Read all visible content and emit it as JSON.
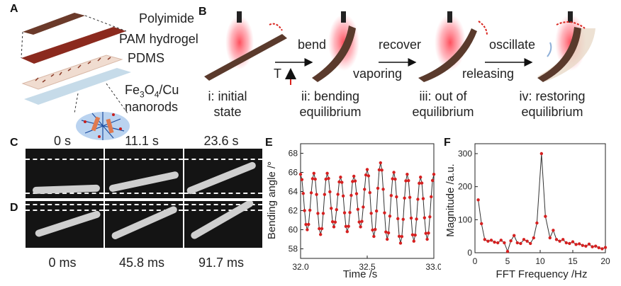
{
  "panels": {
    "a": "A",
    "b": "B",
    "c": "C",
    "d": "D",
    "e": "E",
    "f": "F"
  },
  "panel_a": {
    "layers": [
      "Polyimide",
      "PAM hydrogel",
      "PDMS"
    ],
    "nanorods_line1_pre": "Fe",
    "nanorods_sub1": "3",
    "nanorods_mid": "O",
    "nanorods_sub2": "4",
    "nanorods_post": "/Cu",
    "nanorods_line2": "nanorods"
  },
  "panel_b": {
    "arrow_labels": {
      "bend": "bend",
      "recover": "recover",
      "oscillate": "oscillate",
      "vaporing": "vaporing",
      "releasing": "releasing",
      "t": "T"
    },
    "states": [
      {
        "line1": "i: initial",
        "line2": "state"
      },
      {
        "line1": "ii: bending",
        "line2": "equilibrium"
      },
      {
        "line1": "iii: out of",
        "line2": "equilibrium"
      },
      {
        "line1": "iv: restoring",
        "line2": "equilibrium"
      }
    ]
  },
  "panel_c": {
    "times": [
      "0 s",
      "11.1 s",
      "23.6 s"
    ]
  },
  "panel_d": {
    "times": [
      "0 ms",
      "45.8 ms",
      "91.7 ms"
    ]
  },
  "chart_data": [
    {
      "type": "line",
      "title": "",
      "xlabel": "Time /s",
      "ylabel": "Bending angle /°",
      "xlim": [
        32.0,
        33.0
      ],
      "ylim": [
        57,
        69
      ],
      "xticks": [
        "32.0",
        "32.5",
        "33.0"
      ],
      "xtick_values": [
        32.0,
        32.5,
        33.0
      ],
      "yticks": [
        "58",
        "60",
        "62",
        "64",
        "66",
        "68"
      ],
      "ytick_values": [
        58,
        60,
        62,
        64,
        66,
        68
      ],
      "series": [
        {
          "color": "#d62020",
          "peaks_t": [
            32.0,
            32.1,
            32.2,
            32.3,
            32.4,
            32.5,
            32.6,
            32.7,
            32.8,
            32.9,
            33.0
          ],
          "peaks_v": [
            65.8,
            65.9,
            65.9,
            65.5,
            65.6,
            66.3,
            67.0,
            66.0,
            65.8,
            65.5,
            65.8
          ],
          "troughs_t": [
            32.05,
            32.15,
            32.25,
            32.35,
            32.45,
            32.55,
            32.65,
            32.75,
            32.85,
            32.95
          ],
          "troughs_v": [
            60.0,
            59.5,
            60.3,
            59.8,
            60.3,
            59.3,
            59.0,
            58.6,
            58.8,
            59.0
          ],
          "samples_per_half_cycle": 5
        }
      ]
    },
    {
      "type": "line",
      "title": "",
      "xlabel": "FFT Frequency /Hz",
      "ylabel": "Magnitude /a.u.",
      "xlim": [
        0,
        20
      ],
      "ylim": [
        0,
        330
      ],
      "xticks": [
        "0",
        "5",
        "10",
        "15",
        "20"
      ],
      "xtick_values": [
        0,
        5,
        10,
        15,
        20
      ],
      "yticks": [
        "0",
        "100",
        "200",
        "300"
      ],
      "ytick_values": [
        0,
        100,
        200,
        300
      ],
      "series": [
        {
          "color": "#d62020",
          "x": [
            0.5,
            1.0,
            1.5,
            2.0,
            2.5,
            3.0,
            3.5,
            4.0,
            4.5,
            5.0,
            5.5,
            6.0,
            6.5,
            7.0,
            7.5,
            8.0,
            8.5,
            9.0,
            9.5,
            10.2,
            10.8,
            11.5,
            12.0,
            12.5,
            13.0,
            13.5,
            14.0,
            14.5,
            15.0,
            15.5,
            16.0,
            16.5,
            17.0,
            17.5,
            18.0,
            18.5,
            19.0,
            19.5,
            20.0
          ],
          "y": [
            160,
            88,
            40,
            35,
            38,
            32,
            30,
            38,
            30,
            4,
            36,
            52,
            30,
            28,
            40,
            35,
            28,
            45,
            90,
            300,
            110,
            45,
            68,
            40,
            35,
            40,
            30,
            28,
            33,
            25,
            27,
            22,
            20,
            26,
            18,
            20,
            15,
            12,
            16
          ]
        }
      ]
    }
  ]
}
